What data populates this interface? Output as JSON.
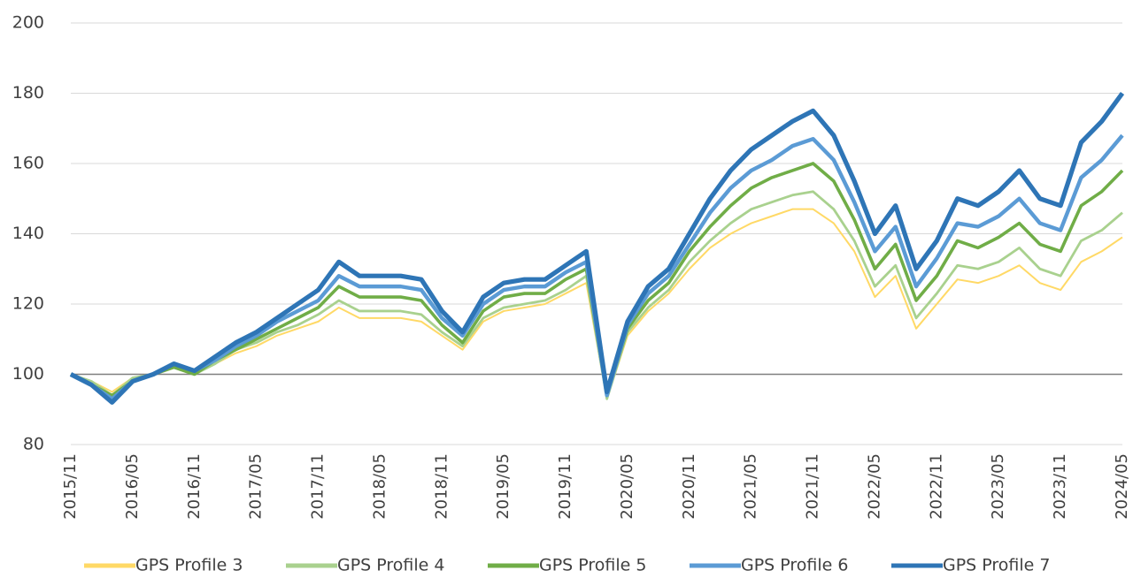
{
  "chart_data": {
    "type": "line",
    "categories": [
      "2015/11",
      null,
      null,
      "2016/05",
      null,
      null,
      "2016/11",
      null,
      null,
      "2017/05",
      null,
      null,
      "2017/11",
      null,
      null,
      "2018/05",
      null,
      null,
      "2018/11",
      null,
      null,
      "2019/05",
      null,
      null,
      "2019/11",
      null,
      null,
      "2020/05",
      null,
      null,
      "2020/11",
      null,
      null,
      "2021/05",
      null,
      null,
      "2021/11",
      null,
      null,
      "2022/05",
      null,
      null,
      "2022/11",
      null,
      null,
      "2023/05",
      null,
      null,
      "2023/11",
      null,
      null,
      "2024/05"
    ],
    "series": [
      {
        "name": "GPS Profile 3",
        "color": "#ffd966",
        "values": [
          100,
          98,
          95,
          99,
          100,
          102,
          100,
          103,
          106,
          108,
          111,
          113,
          115,
          119,
          116,
          116,
          116,
          115,
          111,
          107,
          115,
          118,
          119,
          120,
          123,
          126,
          93,
          111,
          118,
          123,
          130,
          136,
          140,
          143,
          145,
          147,
          147,
          143,
          135,
          122,
          128,
          113,
          120,
          127,
          126,
          128,
          131,
          126,
          124,
          132,
          135,
          139
        ]
      },
      {
        "name": "GPS Profile 4",
        "color": "#a9d18e",
        "values": [
          100,
          98,
          94,
          99,
          100,
          102,
          100,
          103,
          107,
          109,
          112,
          114,
          117,
          121,
          118,
          118,
          118,
          117,
          112,
          108,
          116,
          119,
          120,
          121,
          124,
          128,
          93,
          112,
          119,
          124,
          132,
          138,
          143,
          147,
          149,
          151,
          152,
          147,
          138,
          125,
          131,
          116,
          123,
          131,
          130,
          132,
          136,
          130,
          128,
          138,
          141,
          146
        ]
      },
      {
        "name": "GPS Profile 5",
        "color": "#70ad47",
        "values": [
          100,
          97,
          94,
          98,
          100,
          102,
          100,
          104,
          107,
          110,
          113,
          116,
          119,
          125,
          122,
          122,
          122,
          121,
          114,
          109,
          118,
          122,
          123,
          123,
          127,
          130,
          94,
          113,
          121,
          126,
          135,
          142,
          148,
          153,
          156,
          158,
          160,
          155,
          144,
          130,
          137,
          121,
          128,
          138,
          136,
          139,
          143,
          137,
          135,
          148,
          152,
          158
        ]
      },
      {
        "name": "GPS Profile 6",
        "color": "#5b9bd5",
        "values": [
          100,
          97,
          93,
          98,
          100,
          103,
          101,
          104,
          108,
          111,
          115,
          118,
          121,
          128,
          125,
          125,
          125,
          124,
          116,
          111,
          120,
          124,
          125,
          125,
          129,
          132,
          94,
          114,
          123,
          128,
          137,
          146,
          153,
          158,
          161,
          165,
          167,
          161,
          149,
          135,
          142,
          125,
          133,
          143,
          142,
          145,
          150,
          143,
          141,
          156,
          161,
          168
        ]
      },
      {
        "name": "GPS Profile 7",
        "color": "#2e75b6",
        "values": [
          100,
          97,
          92,
          98,
          100,
          103,
          101,
          105,
          109,
          112,
          116,
          120,
          124,
          132,
          128,
          128,
          128,
          127,
          118,
          112,
          122,
          126,
          127,
          127,
          131,
          135,
          95,
          115,
          125,
          130,
          140,
          150,
          158,
          164,
          168,
          172,
          175,
          168,
          155,
          140,
          148,
          130,
          138,
          150,
          148,
          152,
          158,
          150,
          148,
          166,
          172,
          180
        ]
      }
    ],
    "ylim": [
      80,
      200
    ],
    "yticks": [
      80,
      100,
      120,
      140,
      160,
      180,
      200
    ],
    "reference_line": 100,
    "grid": true,
    "legend": "bottom"
  }
}
